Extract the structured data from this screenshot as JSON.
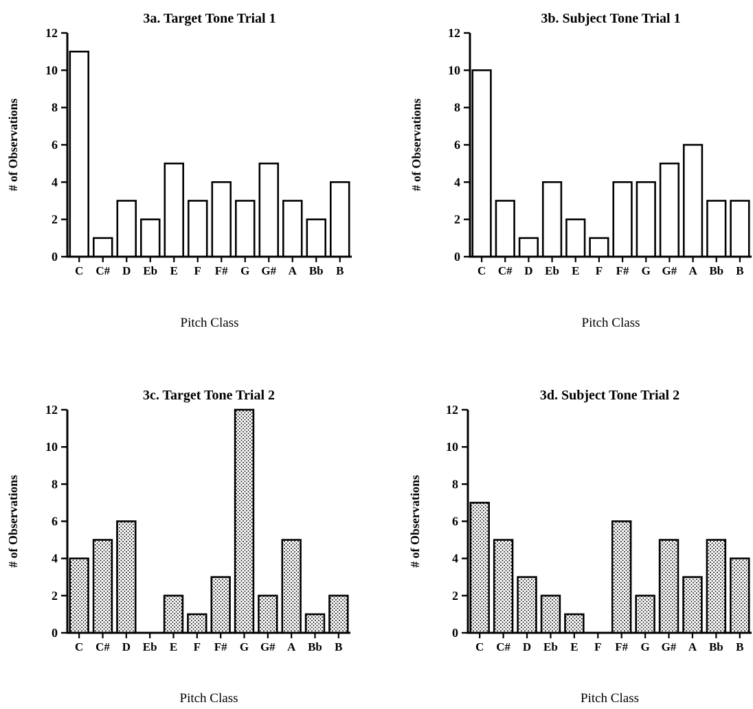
{
  "chart_data": [
    {
      "type": "bar",
      "title": "3a. Target Tone Trial 1",
      "xlabel": "Pitch Class",
      "ylabel": "# of Observations",
      "categories": [
        "C",
        "C#",
        "D",
        "Eb",
        "E",
        "F",
        "F#",
        "G",
        "G#",
        "A",
        "Bb",
        "B"
      ],
      "values": [
        11,
        1,
        3,
        2,
        5,
        3,
        4,
        3,
        5,
        3,
        2,
        4
      ],
      "ylim": [
        0,
        12
      ],
      "yticks": [
        0,
        2,
        4,
        6,
        8,
        10,
        12
      ],
      "fill": "plain",
      "grid": false
    },
    {
      "type": "bar",
      "title": "3b. Subject Tone Trial 1",
      "xlabel": "Pitch Class",
      "ylabel": "# of Observations",
      "categories": [
        "C",
        "C#",
        "D",
        "Eb",
        "E",
        "F",
        "F#",
        "G",
        "G#",
        "A",
        "Bb",
        "B"
      ],
      "values": [
        10,
        3,
        1,
        4,
        2,
        1,
        4,
        4,
        5,
        6,
        3,
        3
      ],
      "ylim": [
        0,
        12
      ],
      "yticks": [
        0,
        2,
        4,
        6,
        8,
        10,
        12
      ],
      "fill": "plain",
      "grid": false
    },
    {
      "type": "bar",
      "title": "3c. Target Tone Trial 2",
      "xlabel": "Pitch Class",
      "ylabel": "# of Observations",
      "categories": [
        "C",
        "C#",
        "D",
        "Eb",
        "E",
        "F",
        "F#",
        "G",
        "G#",
        "A",
        "Bb",
        "B"
      ],
      "values": [
        4,
        5,
        6,
        0,
        2,
        1,
        3,
        12,
        2,
        5,
        1,
        2
      ],
      "ylim": [
        0,
        12
      ],
      "yticks": [
        0,
        2,
        4,
        6,
        8,
        10,
        12
      ],
      "fill": "dotted",
      "grid": false
    },
    {
      "type": "bar",
      "title": "3d. Subject Tone Trial 2",
      "xlabel": "Pitch Class",
      "ylabel": "# of Observations",
      "categories": [
        "C",
        "C#",
        "D",
        "Eb",
        "E",
        "F",
        "F#",
        "G",
        "G#",
        "A",
        "Bb",
        "B"
      ],
      "values": [
        7,
        5,
        3,
        2,
        1,
        0,
        6,
        2,
        5,
        3,
        5,
        4
      ],
      "ylim": [
        0,
        12
      ],
      "yticks": [
        0,
        2,
        4,
        6,
        8,
        10,
        12
      ],
      "fill": "dotted",
      "grid": false
    }
  ],
  "colors": {
    "ink": "#000000",
    "background": "#ffffff",
    "dot": "#000000"
  }
}
